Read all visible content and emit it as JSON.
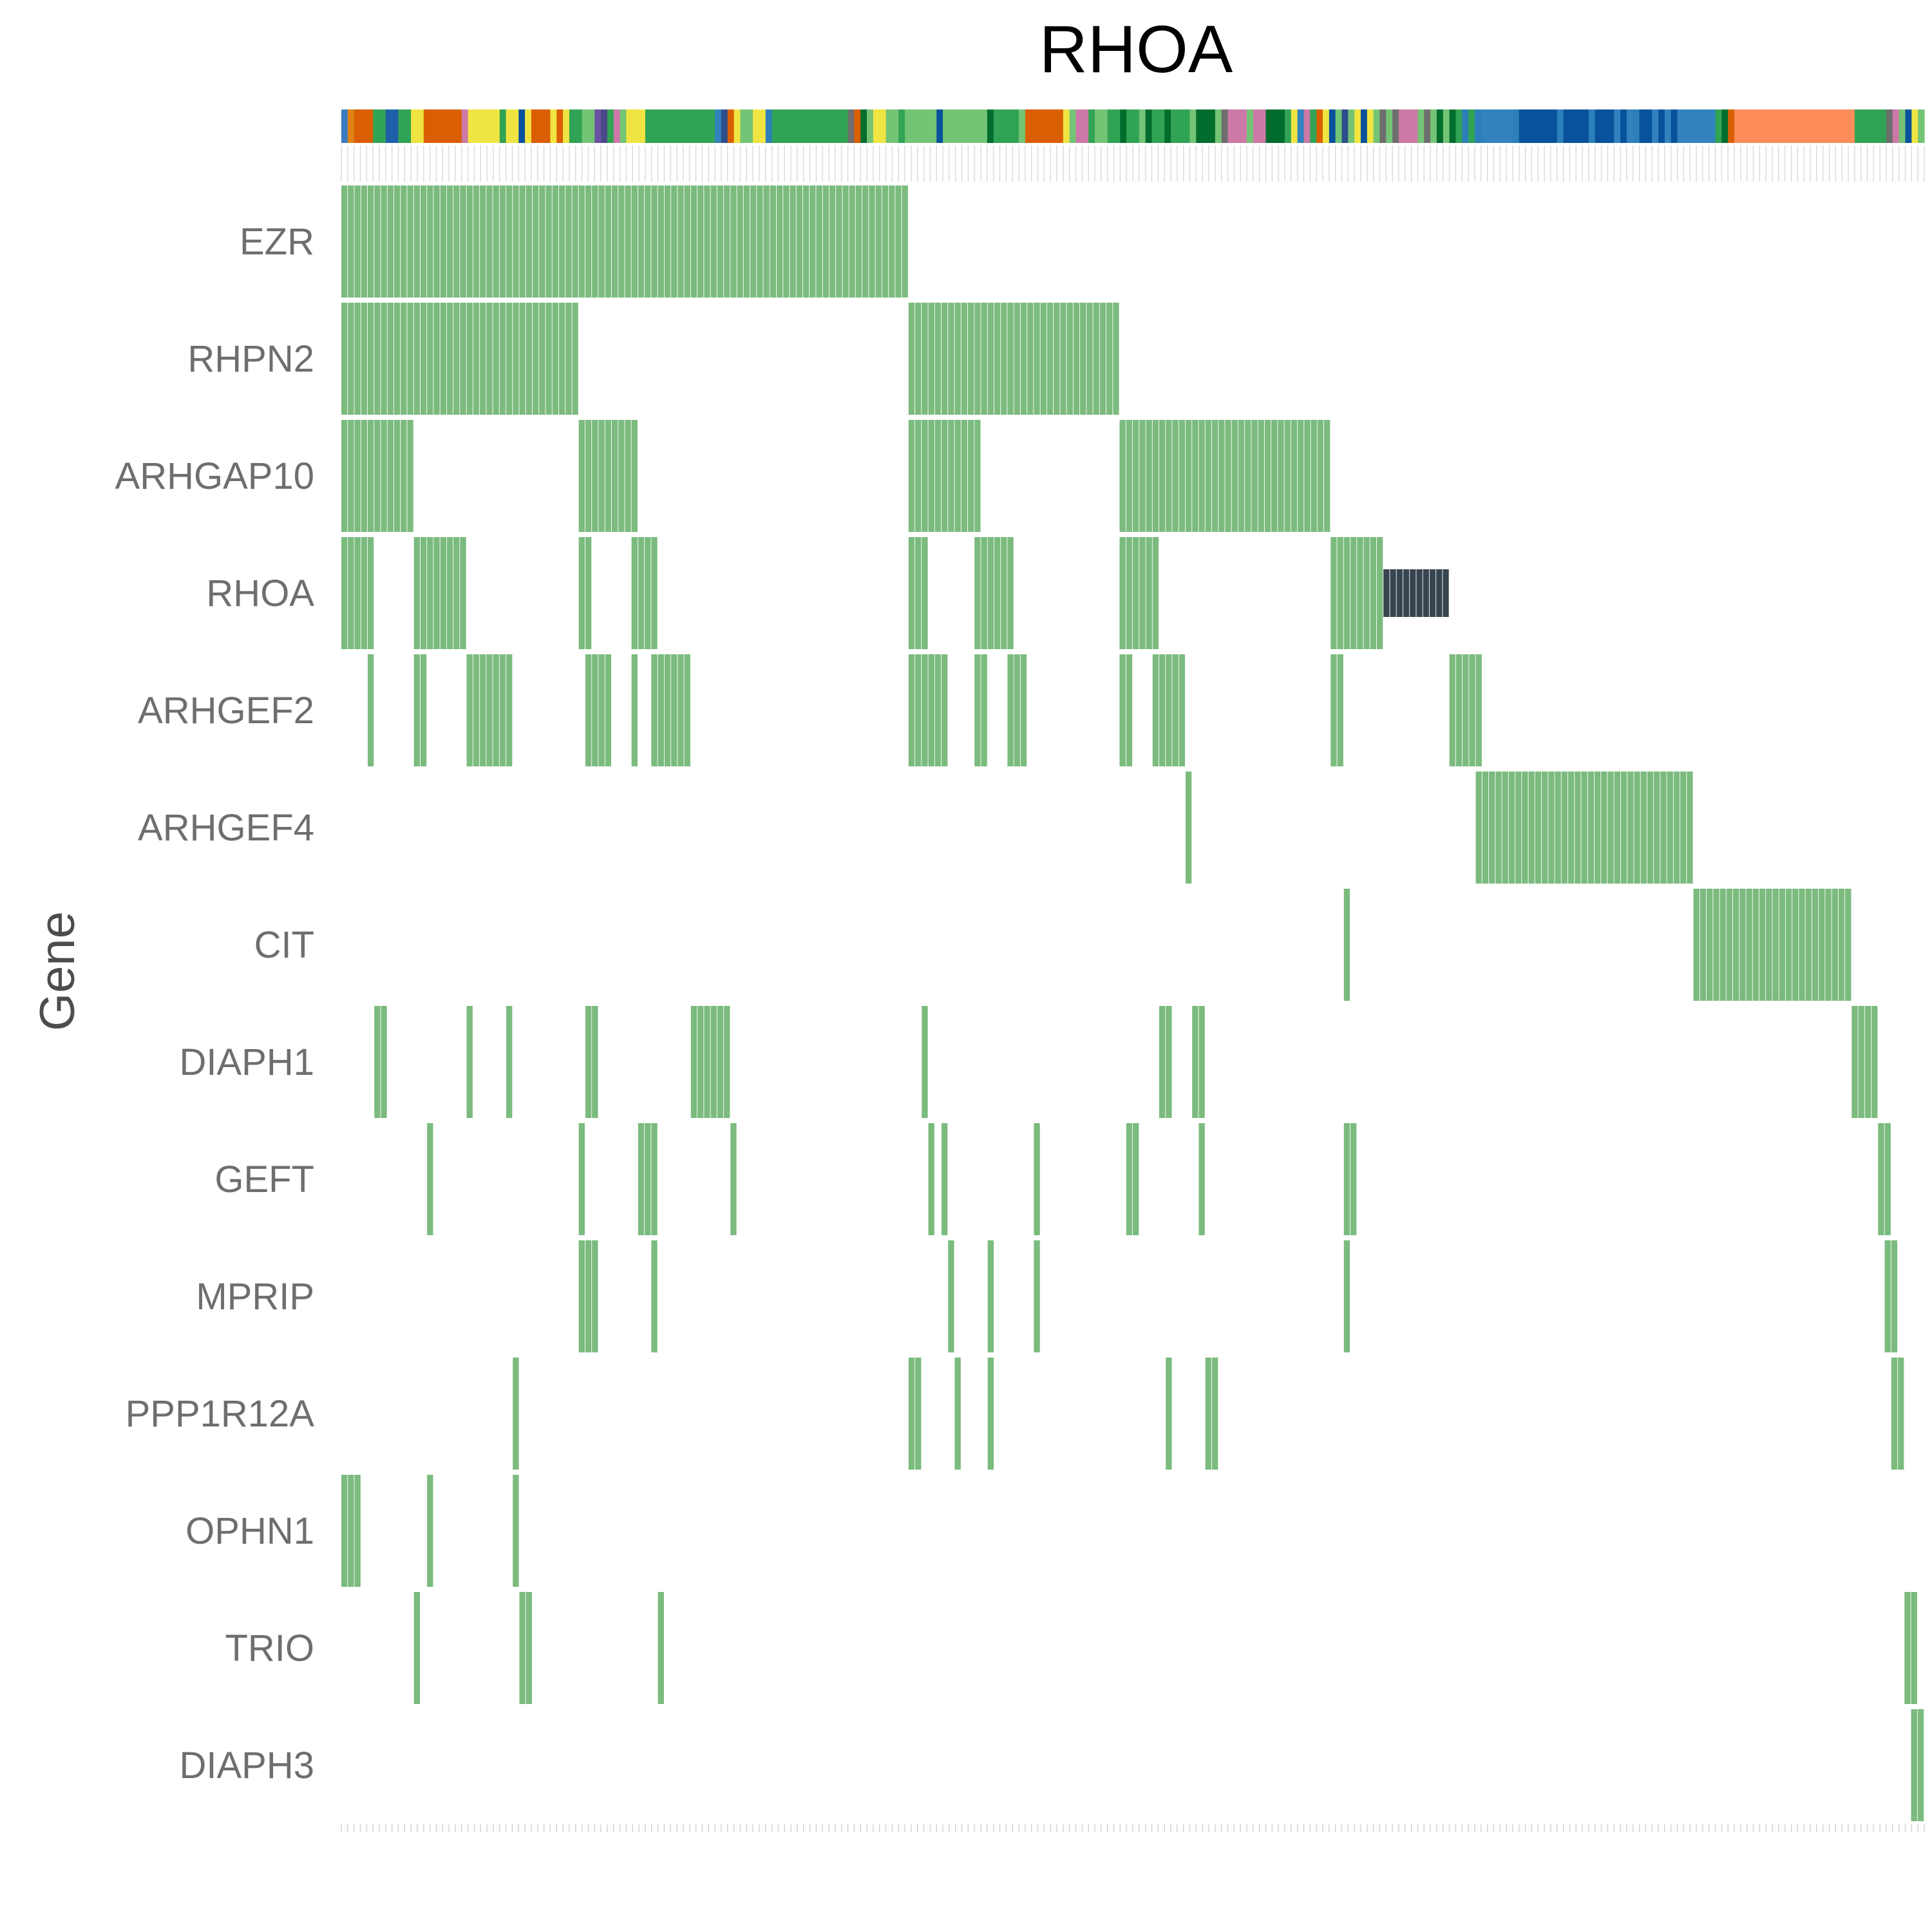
{
  "chart_data": {
    "type": "heatmap",
    "subtype": "oncoprint",
    "title": "RHOA",
    "ylabel": "Gene",
    "xlabel": "",
    "n_samples": 240,
    "genes": [
      "EZR",
      "RHPN2",
      "ARHGAP10",
      "RHOA",
      "ARHGEF2",
      "ARHGEF4",
      "CIT",
      "DIAPH1",
      "GEFT",
      "MPRIP",
      "PPP1R12A",
      "OPHN1",
      "TRIO",
      "DIAPH3"
    ],
    "alteration_colors": {
      "full": "#7bbb7e",
      "partial": "#37444f"
    },
    "alterations": [
      {
        "gene": "EZR",
        "type": "full",
        "ranges": [
          [
            0,
            85
          ]
        ]
      },
      {
        "gene": "RHPN2",
        "type": "full",
        "ranges": [
          [
            0,
            35
          ],
          [
            86,
            117
          ]
        ]
      },
      {
        "gene": "ARHGAP10",
        "type": "full",
        "ranges": [
          [
            0,
            10
          ],
          [
            36,
            44
          ],
          [
            86,
            96
          ],
          [
            118,
            149
          ]
        ]
      },
      {
        "gene": "RHOA",
        "type": "full",
        "ranges": [
          [
            0,
            4
          ],
          [
            11,
            18
          ],
          [
            36,
            37
          ],
          [
            44,
            47
          ],
          [
            86,
            88
          ],
          [
            96,
            101
          ],
          [
            118,
            123
          ],
          [
            150,
            157
          ]
        ]
      },
      {
        "gene": "RHOA",
        "type": "partial",
        "ranges": [
          [
            158,
            167
          ]
        ]
      },
      {
        "gene": "ARHGEF2",
        "type": "full",
        "ranges": [
          [
            4,
            4
          ],
          [
            11,
            12
          ],
          [
            19,
            25
          ],
          [
            37,
            40
          ],
          [
            44,
            44
          ],
          [
            47,
            52
          ],
          [
            86,
            87
          ],
          [
            88,
            91
          ],
          [
            96,
            97
          ],
          [
            101,
            103
          ],
          [
            118,
            119
          ],
          [
            123,
            127
          ],
          [
            150,
            151
          ],
          [
            168,
            172
          ]
        ]
      },
      {
        "gene": "ARHGEF4",
        "type": "full",
        "ranges": [
          [
            128,
            128
          ],
          [
            172,
            204
          ]
        ]
      },
      {
        "gene": "CIT",
        "type": "full",
        "ranges": [
          [
            152,
            152
          ],
          [
            205,
            228
          ]
        ]
      },
      {
        "gene": "DIAPH1",
        "type": "full",
        "ranges": [
          [
            5,
            6
          ],
          [
            19,
            19
          ],
          [
            25,
            25
          ],
          [
            37,
            38
          ],
          [
            53,
            58
          ],
          [
            88,
            88
          ],
          [
            124,
            125
          ],
          [
            129,
            130
          ],
          [
            229,
            232
          ]
        ]
      },
      {
        "gene": "GEFT",
        "type": "full",
        "ranges": [
          [
            13,
            13
          ],
          [
            36,
            36
          ],
          [
            45,
            46
          ],
          [
            47,
            47
          ],
          [
            59,
            59
          ],
          [
            89,
            89
          ],
          [
            91,
            91
          ],
          [
            105,
            105
          ],
          [
            119,
            120
          ],
          [
            130,
            130
          ],
          [
            152,
            153
          ],
          [
            233,
            234
          ]
        ]
      },
      {
        "gene": "MPRIP",
        "type": "full",
        "ranges": [
          [
            36,
            36
          ],
          [
            37,
            38
          ],
          [
            47,
            47
          ],
          [
            92,
            92
          ],
          [
            98,
            98
          ],
          [
            105,
            105
          ],
          [
            152,
            152
          ],
          [
            234,
            235
          ]
        ]
      },
      {
        "gene": "PPP1R12A",
        "type": "full",
        "ranges": [
          [
            26,
            26
          ],
          [
            86,
            86
          ],
          [
            87,
            87
          ],
          [
            93,
            93
          ],
          [
            98,
            98
          ],
          [
            125,
            125
          ],
          [
            131,
            132
          ],
          [
            235,
            236
          ]
        ]
      },
      {
        "gene": "OPHN1",
        "type": "full",
        "ranges": [
          [
            0,
            2
          ],
          [
            13,
            13
          ],
          [
            26,
            26
          ]
        ]
      },
      {
        "gene": "TRIO",
        "type": "full",
        "ranges": [
          [
            11,
            11
          ],
          [
            27,
            28
          ],
          [
            48,
            48
          ],
          [
            237,
            238
          ]
        ]
      },
      {
        "gene": "DIAPH3",
        "type": "full",
        "ranges": [
          [
            238,
            240
          ]
        ]
      }
    ],
    "annotation_track": [
      [
        0,
        1,
        "#3a7abf"
      ],
      [
        1,
        2,
        "#e08214"
      ],
      [
        2,
        5,
        "#d95f02"
      ],
      [
        5,
        7,
        "#31a354"
      ],
      [
        7,
        9,
        "#1f5fa8"
      ],
      [
        9,
        11,
        "#31a354"
      ],
      [
        11,
        13,
        "#f0e442"
      ],
      [
        13,
        19,
        "#d95f02"
      ],
      [
        19,
        20,
        "#cc79a7"
      ],
      [
        20,
        25,
        "#f0e442"
      ],
      [
        25,
        26,
        "#31a354"
      ],
      [
        26,
        28,
        "#f0e442"
      ],
      [
        28,
        29,
        "#08519c"
      ],
      [
        29,
        30,
        "#f0e442"
      ],
      [
        30,
        33,
        "#d95f02"
      ],
      [
        33,
        34,
        "#f0e442"
      ],
      [
        34,
        35,
        "#d95f02"
      ],
      [
        35,
        36,
        "#f0e442"
      ],
      [
        36,
        38,
        "#31a354"
      ],
      [
        38,
        40,
        "#74c476"
      ],
      [
        40,
        41,
        "#6a51a3"
      ],
      [
        41,
        42,
        "#4a4a8a"
      ],
      [
        42,
        43,
        "#31a354"
      ],
      [
        43,
        44,
        "#cc79a7"
      ],
      [
        44,
        45,
        "#74c476"
      ],
      [
        45,
        48,
        "#f0e442"
      ],
      [
        48,
        50,
        "#31a354"
      ],
      [
        50,
        53,
        "#31a354"
      ],
      [
        53,
        59,
        "#31a354"
      ],
      [
        59,
        60,
        "#3182bd"
      ],
      [
        60,
        61,
        "#2c4e8a"
      ],
      [
        61,
        62,
        "#d95f02"
      ],
      [
        62,
        63,
        "#f0e442"
      ],
      [
        63,
        65,
        "#74c476"
      ],
      [
        65,
        67,
        "#f0e442"
      ],
      [
        67,
        68,
        "#2c7fb8"
      ],
      [
        68,
        69,
        "#31a354"
      ],
      [
        69,
        80,
        "#31a354"
      ],
      [
        80,
        81,
        "#6e6e6e"
      ],
      [
        81,
        82,
        "#d95f02"
      ],
      [
        82,
        83,
        "#006d2c"
      ],
      [
        83,
        84,
        "#74c476"
      ],
      [
        84,
        86,
        "#f0e442"
      ],
      [
        86,
        88,
        "#74c476"
      ],
      [
        88,
        89,
        "#31a354"
      ],
      [
        89,
        94,
        "#74c476"
      ],
      [
        94,
        95,
        "#08519c"
      ],
      [
        95,
        102,
        "#74c476"
      ],
      [
        102,
        103,
        "#006d2c"
      ],
      [
        103,
        104,
        "#31a354"
      ],
      [
        104,
        107,
        "#31a354"
      ],
      [
        107,
        108,
        "#74c476"
      ],
      [
        108,
        110,
        "#d95f02"
      ],
      [
        110,
        114,
        "#d95f02"
      ],
      [
        114,
        115,
        "#f0e442"
      ],
      [
        115,
        116,
        "#74c476"
      ],
      [
        116,
        118,
        "#cc79a7"
      ],
      [
        118,
        119,
        "#31a354"
      ],
      [
        119,
        121,
        "#74c476"
      ],
      [
        121,
        123,
        "#31a354"
      ],
      [
        123,
        124,
        "#006d2c"
      ],
      [
        124,
        126,
        "#31a354"
      ],
      [
        126,
        127,
        "#74c476"
      ],
      [
        127,
        128,
        "#006d2c"
      ],
      [
        128,
        130,
        "#31a354"
      ],
      [
        130,
        131,
        "#006d2c"
      ],
      [
        131,
        134,
        "#31a354"
      ],
      [
        134,
        135,
        "#74c476"
      ],
      [
        135,
        138,
        "#006d2c"
      ],
      [
        138,
        139,
        "#74c476"
      ],
      [
        139,
        140,
        "#6e6e6e"
      ],
      [
        140,
        141,
        "#cc79a7"
      ],
      [
        141,
        143,
        "#cc79a7"
      ],
      [
        143,
        144,
        "#74c476"
      ],
      [
        144,
        146,
        "#cc79a7"
      ],
      [
        146,
        147,
        "#006d2c"
      ],
      [
        147,
        149,
        "#006d2c"
      ],
      [
        149,
        150,
        "#31a354"
      ],
      [
        150,
        151,
        "#f0e442"
      ],
      [
        151,
        152,
        "#3182bd"
      ],
      [
        152,
        153,
        "#cc79a7"
      ],
      [
        153,
        154,
        "#31a354"
      ],
      [
        154,
        155,
        "#d95f02"
      ],
      [
        155,
        156,
        "#f0e442"
      ],
      [
        156,
        157,
        "#08519c"
      ],
      [
        157,
        158,
        "#74c476"
      ],
      [
        158,
        159,
        "#2c4e8a"
      ],
      [
        159,
        160,
        "#74c476"
      ],
      [
        160,
        161,
        "#f0e442"
      ],
      [
        161,
        162,
        "#08519c"
      ],
      [
        162,
        163,
        "#f0e442"
      ],
      [
        163,
        164,
        "#74c476"
      ],
      [
        164,
        165,
        "#6e6e6e"
      ],
      [
        165,
        166,
        "#74c476"
      ],
      [
        166,
        167,
        "#6e6e6e"
      ],
      [
        167,
        168,
        "#cc79a7"
      ],
      [
        168,
        170,
        "#cc79a7"
      ],
      [
        170,
        171,
        "#74c476"
      ],
      [
        171,
        172,
        "#6e6e6e"
      ],
      [
        172,
        173,
        "#74c476"
      ],
      [
        173,
        174,
        "#006d2c"
      ],
      [
        174,
        175,
        "#74c476"
      ],
      [
        175,
        176,
        "#006d2c"
      ],
      [
        176,
        177,
        "#31a354"
      ],
      [
        177,
        178,
        "#2c7fb8"
      ],
      [
        178,
        179,
        "#31a354"
      ],
      [
        179,
        180,
        "#2c7fb8"
      ],
      [
        180,
        185,
        "#3182bd"
      ],
      [
        185,
        186,
        "#2c7fb8"
      ],
      [
        186,
        187,
        "#08519c"
      ],
      [
        187,
        188,
        "#08519c"
      ],
      [
        188,
        192,
        "#08519c"
      ],
      [
        192,
        193,
        "#2c7fb8"
      ],
      [
        193,
        197,
        "#08519c"
      ],
      [
        197,
        198,
        "#2c7fb8"
      ],
      [
        198,
        201,
        "#08519c"
      ],
      [
        201,
        202,
        "#3182bd"
      ],
      [
        202,
        203,
        "#08519c"
      ],
      [
        203,
        204,
        "#3182bd"
      ],
      [
        204,
        205,
        "#2c7fb8"
      ],
      [
        205,
        207,
        "#08519c"
      ],
      [
        207,
        208,
        "#3182bd"
      ],
      [
        208,
        209,
        "#08519c"
      ],
      [
        209,
        210,
        "#3182bd"
      ],
      [
        210,
        211,
        "#08519c"
      ],
      [
        211,
        217,
        "#3182bd"
      ],
      [
        217,
        218,
        "#31a354"
      ],
      [
        218,
        219,
        "#006d2c"
      ],
      [
        219,
        220,
        "#d95f02"
      ],
      [
        220,
        225,
        "#fc8d59"
      ],
      [
        225,
        239,
        "#fc8d59"
      ],
      [
        239,
        240,
        "#31a354"
      ],
      [
        240,
        241,
        "#31a354"
      ],
      [
        241,
        242,
        "#31a354"
      ],
      [
        242,
        243,
        "#31a354"
      ],
      [
        243,
        244,
        "#31a354"
      ],
      [
        244,
        245,
        "#6e6e6e"
      ],
      [
        245,
        246,
        "#cc79a7"
      ],
      [
        246,
        247,
        "#74c476"
      ],
      [
        247,
        248,
        "#08519c"
      ],
      [
        248,
        249,
        "#f0e442"
      ],
      [
        249,
        250,
        "#74c476"
      ]
    ],
    "grid": false,
    "legend": "none"
  }
}
